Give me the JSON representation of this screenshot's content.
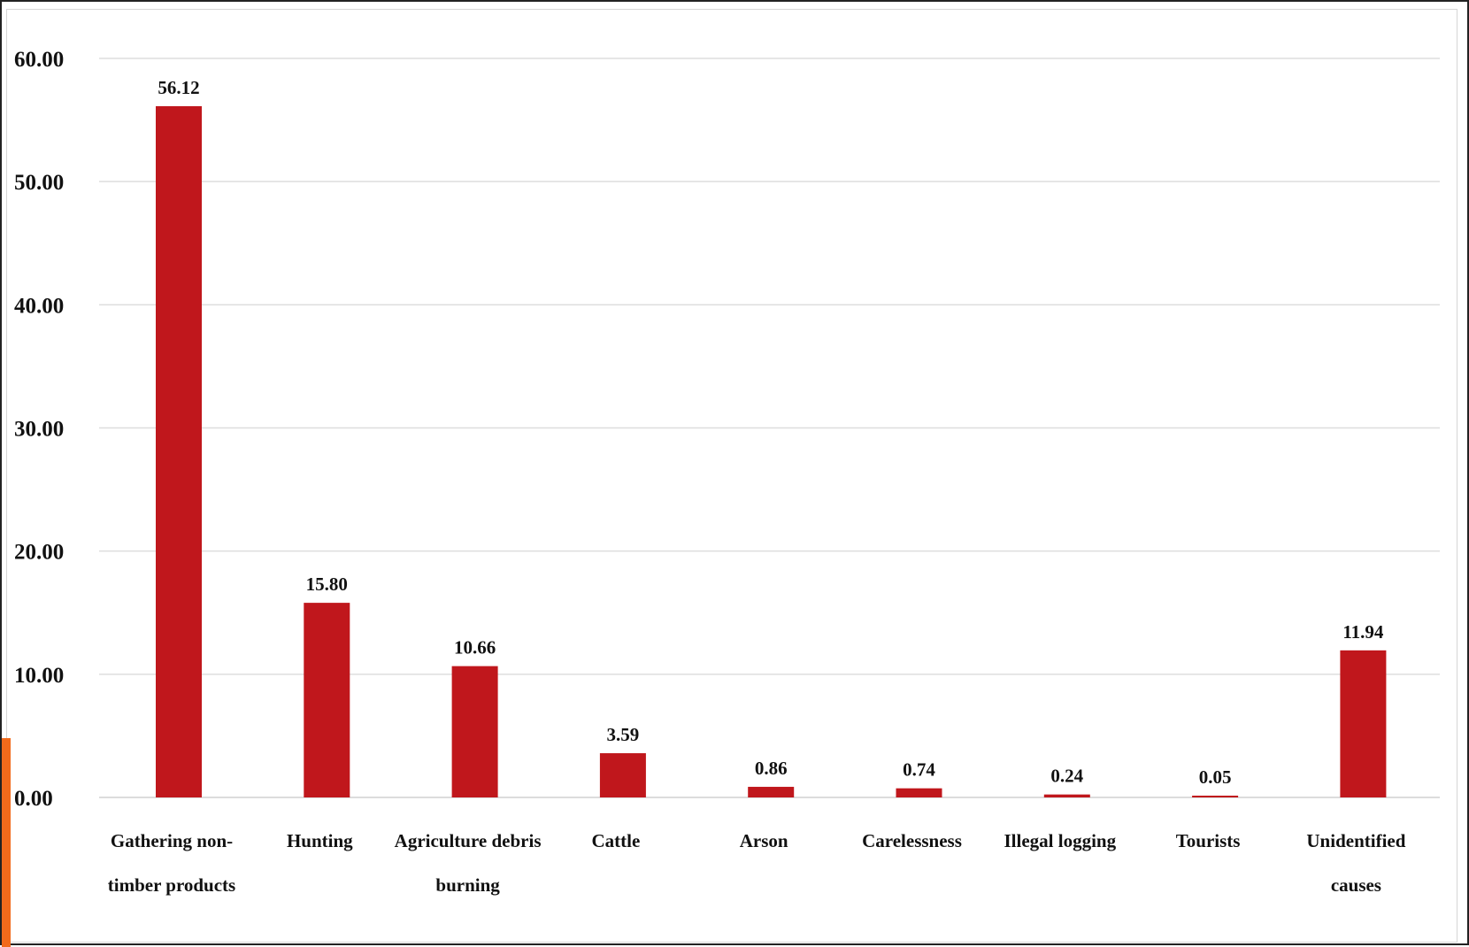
{
  "chart_data": {
    "type": "bar",
    "categories": [
      [
        "Gathering non-",
        "timber products"
      ],
      [
        "Hunting"
      ],
      [
        "Agriculture debris",
        "burning"
      ],
      [
        "Cattle"
      ],
      [
        "Arson"
      ],
      [
        "Carelessness"
      ],
      [
        "Illegal logging"
      ],
      [
        "Tourists"
      ],
      [
        "Unidentified",
        "causes"
      ]
    ],
    "values": [
      56.12,
      15.8,
      10.66,
      3.59,
      0.86,
      0.74,
      0.24,
      0.05,
      11.94
    ],
    "value_labels": [
      "56.12",
      "15.80",
      "10.66",
      "3.59",
      "0.86",
      "0.74",
      "0.24",
      "0.05",
      "11.94"
    ],
    "title": "",
    "xlabel": "",
    "ylabel": "",
    "ylim": [
      0,
      60
    ],
    "yticks": [
      0,
      10,
      20,
      30,
      40,
      50,
      60
    ],
    "ytick_labels": [
      "0.00",
      "10.00",
      "20.00",
      "30.00",
      "40.00",
      "50.00",
      "60.00"
    ],
    "grid": true,
    "legend": "none",
    "bar_color": "#c0171c",
    "accent_color": "#f26a1b"
  }
}
